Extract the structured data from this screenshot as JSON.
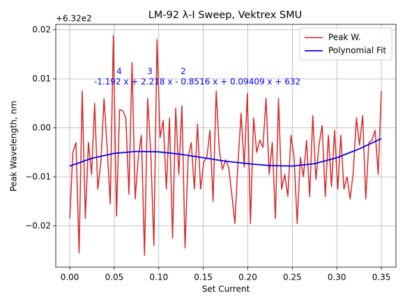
{
  "chart_data": {
    "type": "line",
    "title": "LM-92 λ-I Sweep, Vektrex SMU",
    "xlabel": "Set Current",
    "ylabel": "Peak Wavelength, nm",
    "y_offset_label": "+6.32e2",
    "annotation": "-1.192 x + 2.218 x - 0.8516 x + 0.09409 x + 632",
    "annotation_exponents": [
      "4",
      "3",
      "2"
    ],
    "annotation_color": "#0000ff",
    "grid": true,
    "legend": "upper right",
    "xlim": [
      -0.0157,
      0.3664
    ],
    "ylim": [
      -0.0284,
      0.0211
    ],
    "xticks": [
      {
        "value": 0,
        "label": "0.00"
      },
      {
        "value": 0.05,
        "label": "0.05"
      },
      {
        "value": 0.1,
        "label": "0.10"
      },
      {
        "value": 0.15,
        "label": "0.15"
      },
      {
        "value": 0.2,
        "label": "0.20"
      },
      {
        "value": 0.25,
        "label": "0.25"
      },
      {
        "value": 0.3,
        "label": "0.30"
      },
      {
        "value": 0.35,
        "label": "0.35"
      }
    ],
    "yticks": [
      {
        "value": -0.02,
        "label": "−0.02"
      },
      {
        "value": -0.01,
        "label": "−0.01"
      },
      {
        "value": 0,
        "label": "0.00"
      },
      {
        "value": 0.01,
        "label": "0.01"
      },
      {
        "value": 0.02,
        "label": "0.02"
      }
    ],
    "series": [
      {
        "name": "Peak W.",
        "color": "#d62728",
        "width": 1.5,
        "x": [
          0,
          0.0035,
          0.007,
          0.0105,
          0.014,
          0.0175,
          0.021,
          0.0245,
          0.028,
          0.0315,
          0.035,
          0.0385,
          0.042,
          0.0455,
          0.049,
          0.0525,
          0.056,
          0.0595,
          0.063,
          0.0665,
          0.07,
          0.0735,
          0.077,
          0.0805,
          0.084,
          0.0875,
          0.091,
          0.0945,
          0.098,
          0.1015,
          0.105,
          0.1085,
          0.112,
          0.1155,
          0.119,
          0.1225,
          0.126,
          0.1295,
          0.133,
          0.1365,
          0.14,
          0.1435,
          0.147,
          0.1505,
          0.154,
          0.1575,
          0.161,
          0.1645,
          0.168,
          0.1715,
          0.175,
          0.1785,
          0.182,
          0.1855,
          0.189,
          0.1925,
          0.196,
          0.1995,
          0.203,
          0.2065,
          0.21,
          0.2135,
          0.217,
          0.2205,
          0.224,
          0.2275,
          0.231,
          0.2345,
          0.238,
          0.2415,
          0.245,
          0.2485,
          0.252,
          0.2555,
          0.259,
          0.2625,
          0.266,
          0.2695,
          0.273,
          0.2765,
          0.28,
          0.2835,
          0.287,
          0.2905,
          0.294,
          0.2975,
          0.301,
          0.3045,
          0.308,
          0.3115,
          0.315,
          0.3185,
          0.322,
          0.3255,
          0.329,
          0.3325,
          0.336,
          0.3395,
          0.343,
          0.3465,
          0.35
        ],
        "values": [
          -0.0185,
          -0.005,
          -0.003,
          -0.0255,
          0.0075,
          -0.0185,
          -0.003,
          -0.0095,
          0.005,
          -0.0125,
          -0.007,
          0.006,
          -0.004,
          -0.0155,
          0.0188,
          -0.018,
          0.0037,
          0.0035,
          0.002,
          -0.0135,
          0.0133,
          -0.0145,
          -0.006,
          -0.0015,
          -0.026,
          0.006,
          -0.005,
          -0.024,
          0.018,
          -0.002,
          0.0015,
          -0.0125,
          0.002,
          -0.0225,
          0.004,
          -0.0095,
          0.0045,
          -0.0245,
          -0.006,
          -0.003,
          -0.0125,
          0.0008,
          -0.0125,
          -0.007,
          -0.006,
          -0.0005,
          -0.015,
          0.0075,
          -0.0045,
          -0.0085,
          -0.0065,
          -0.008,
          -0.0135,
          -0.0195,
          -0.007,
          0.003,
          -0.008,
          0.007,
          -0.0195,
          0.002,
          -0.005,
          -0.0025,
          -0.004,
          0.006,
          -0.0095,
          -0.003,
          -0.0185,
          0.006,
          -0.0125,
          -0.0095,
          -0.014,
          -0.0015,
          -0.006,
          -0.0195,
          -0.006,
          -0.01,
          -0.0025,
          -0.014,
          0.0025,
          -0.0105,
          -0.0035,
          0.0005,
          -0.014,
          -0.0015,
          -0.012,
          -0.0005,
          -0.0125,
          -0.0015,
          -0.0125,
          -0.01,
          -0.0145,
          -0.009,
          0.002,
          -0.0035,
          0.0025,
          -0.0145,
          -0.003,
          -0.0025,
          -0.0005,
          -0.0095,
          0.0075
        ]
      },
      {
        "name": "Polynomial Fit",
        "color": "#0000ff",
        "width": 1.8,
        "x": [
          0,
          0.025,
          0.05,
          0.075,
          0.1,
          0.125,
          0.15,
          0.175,
          0.2,
          0.225,
          0.25,
          0.275,
          0.3,
          0.325,
          0.35
        ],
        "values": [
          -0.0078,
          -0.0062,
          -0.0052,
          -0.0048,
          -0.0049,
          -0.0054,
          -0.0061,
          -0.0068,
          -0.0073,
          -0.0077,
          -0.0078,
          -0.0073,
          -0.0061,
          -0.0043,
          -0.0022
        ]
      }
    ]
  }
}
